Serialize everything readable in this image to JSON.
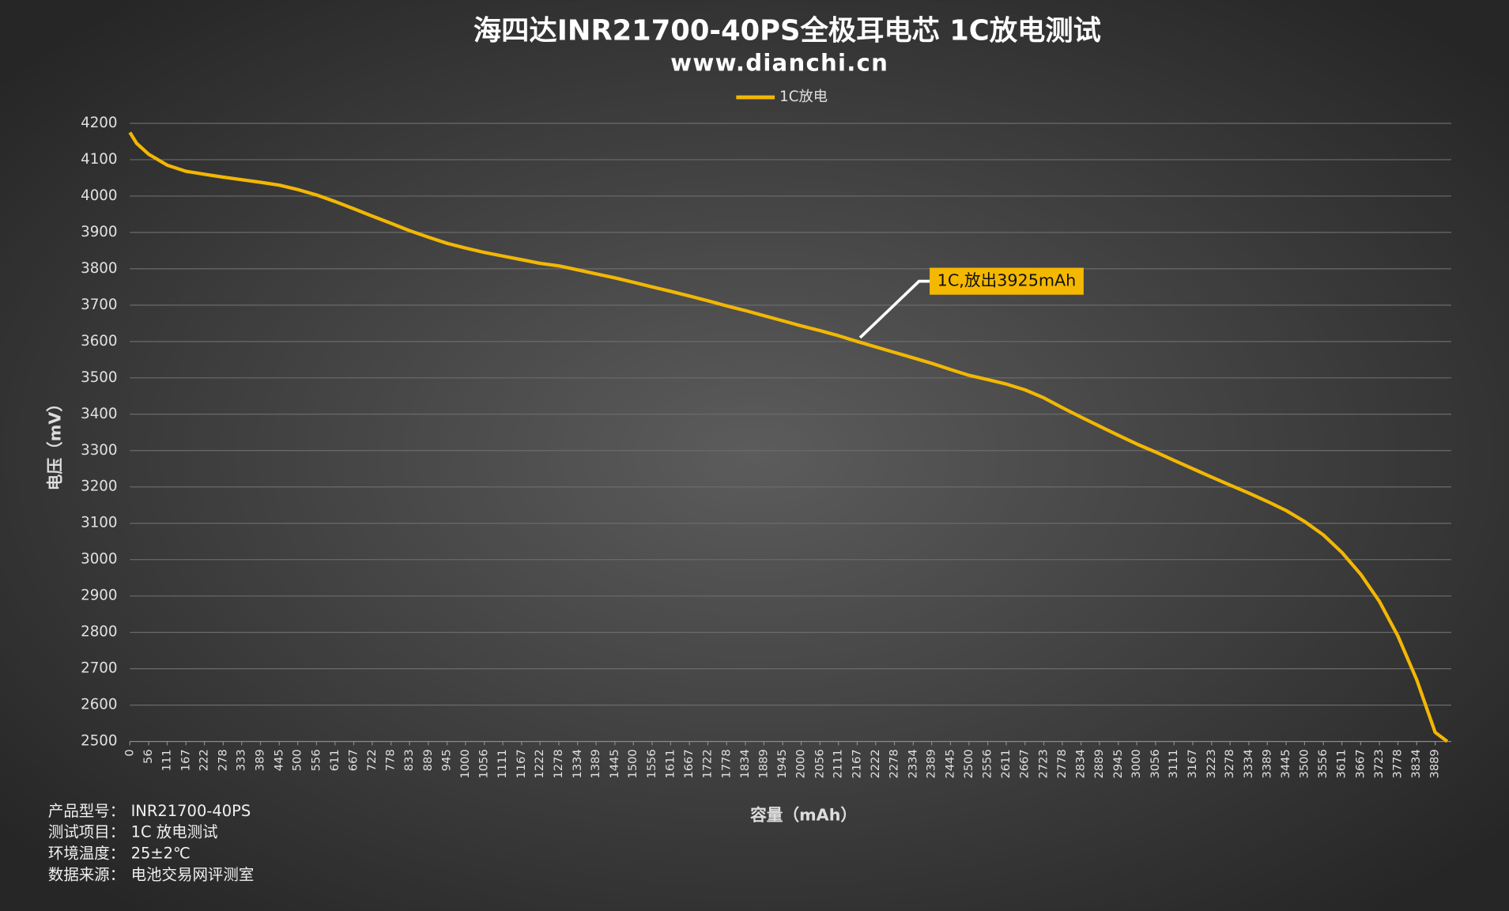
{
  "chart_data": {
    "type": "line",
    "title": "海四达INR21700-40PS全极耳电芯 1C放电测试",
    "subtitle": "www.dianchi.cn",
    "y_label": "电压（mV）",
    "x_label": "容量（mAh）",
    "annotation": "1C,放出3925mAh",
    "legend": "top",
    "grid": true,
    "xlim": [
      0,
      3937
    ],
    "xticks": [
      0,
      56,
      111,
      167,
      222,
      278,
      333,
      389,
      445,
      500,
      556,
      611,
      667,
      722,
      778,
      833,
      889,
      945,
      1000,
      1056,
      1111,
      1167,
      1222,
      1278,
      1334,
      1389,
      1445,
      1500,
      1556,
      1611,
      1667,
      1722,
      1778,
      1834,
      1889,
      1945,
      2000,
      2056,
      2111,
      2167,
      2222,
      2278,
      2334,
      2389,
      2445,
      2500,
      2556,
      2611,
      2667,
      2723,
      2778,
      2834,
      2889,
      2945,
      3000,
      3056,
      3111,
      3167,
      3223,
      3278,
      3334,
      3389,
      3445,
      3500,
      3556,
      3611,
      3667,
      3723,
      3778,
      3834,
      3889
    ],
    "ylim": [
      2500,
      4200
    ],
    "yticks": [
      2500,
      2600,
      2700,
      2800,
      2900,
      3000,
      3100,
      3200,
      3300,
      3400,
      3500,
      3600,
      3700,
      3800,
      3900,
      4000,
      4100,
      4200
    ],
    "x": [
      0,
      20,
      56,
      111,
      167,
      222,
      278,
      333,
      389,
      445,
      500,
      556,
      611,
      667,
      722,
      778,
      833,
      889,
      945,
      1000,
      1056,
      1111,
      1167,
      1222,
      1278,
      1334,
      1389,
      1445,
      1500,
      1556,
      1611,
      1667,
      1722,
      1778,
      1834,
      1889,
      1945,
      2000,
      2056,
      2111,
      2167,
      2222,
      2278,
      2334,
      2389,
      2445,
      2500,
      2556,
      2611,
      2667,
      2723,
      2778,
      2834,
      2889,
      2945,
      3000,
      3056,
      3111,
      3167,
      3223,
      3278,
      3334,
      3389,
      3445,
      3500,
      3556,
      3611,
      3667,
      3723,
      3778,
      3834,
      3889,
      3925
    ],
    "series": [
      {
        "name": "1C放电",
        "color": "#f2b705",
        "values": [
          4175,
          4145,
          4115,
          4085,
          4068,
          4060,
          4052,
          4045,
          4038,
          4030,
          4018,
          4003,
          3985,
          3965,
          3945,
          3925,
          3905,
          3887,
          3870,
          3857,
          3845,
          3835,
          3825,
          3815,
          3808,
          3797,
          3786,
          3775,
          3763,
          3750,
          3738,
          3725,
          3712,
          3698,
          3685,
          3671,
          3657,
          3643,
          3630,
          3616,
          3600,
          3585,
          3570,
          3555,
          3540,
          3523,
          3507,
          3495,
          3483,
          3467,
          3445,
          3418,
          3392,
          3367,
          3342,
          3318,
          3296,
          3273,
          3250,
          3227,
          3205,
          3183,
          3160,
          3135,
          3105,
          3068,
          3020,
          2960,
          2885,
          2790,
          2670,
          2525,
          2500
        ]
      }
    ],
    "notes": [
      {
        "label": "产品型号：",
        "value": "INR21700-40PS"
      },
      {
        "label": "测试项目：",
        "value": "1C 放电测试"
      },
      {
        "label": "环境温度：",
        "value": "25±2℃"
      },
      {
        "label": "数据来源：",
        "value": "电池交易网评测室"
      }
    ]
  }
}
